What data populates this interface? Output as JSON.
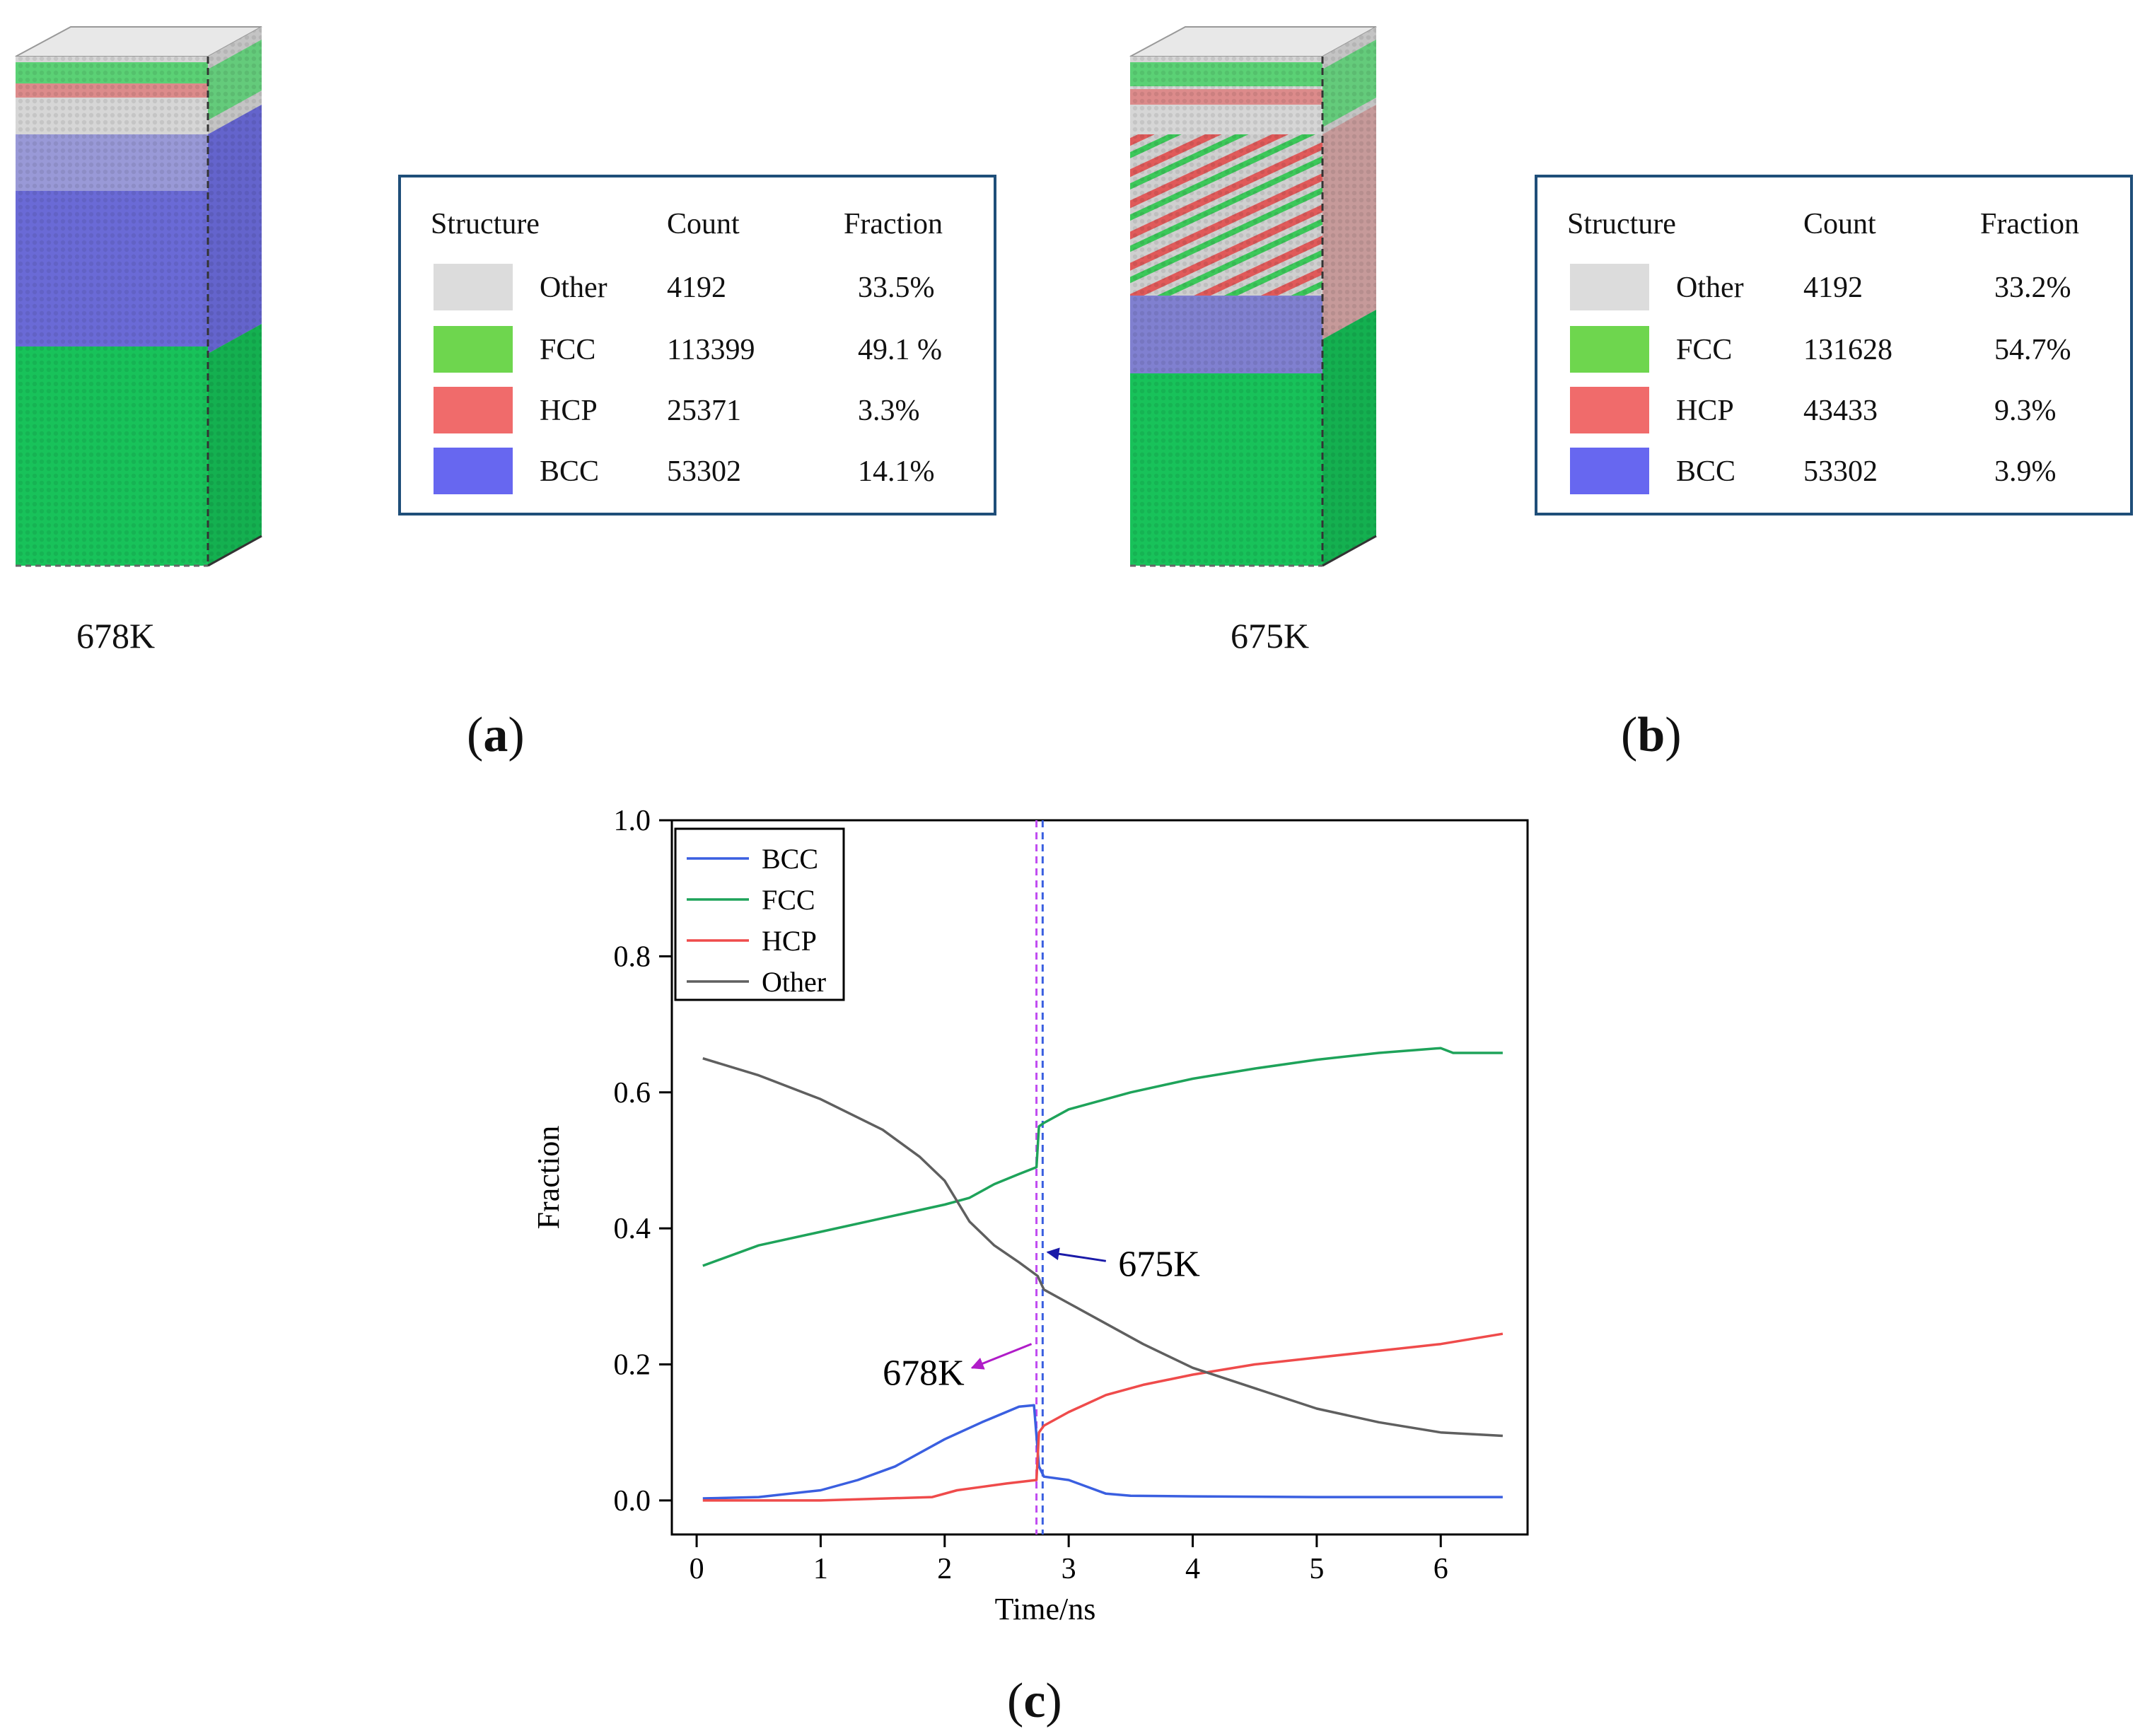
{
  "panels": {
    "a": {
      "label_open": "(",
      "label_letter": "a",
      "label_close": ")",
      "temperature": "678K",
      "table": {
        "headers": [
          "Structure",
          "Count",
          "Fraction"
        ],
        "rows": [
          {
            "structure": "Other",
            "count": "4192",
            "fraction": "33.5%",
            "color": "#dcdcdc"
          },
          {
            "structure": "FCC",
            "count": "113399",
            "fraction": "49.1 %",
            "color": "#6ed64e"
          },
          {
            "structure": "HCP",
            "count": "25371",
            "fraction": "3.3%",
            "color": "#f06b6b"
          },
          {
            "structure": "BCC",
            "count": "53302",
            "fraction": "14.1%",
            "color": "#6767f0"
          }
        ]
      }
    },
    "b": {
      "label_open": "(",
      "label_letter": "b",
      "label_close": ")",
      "temperature": "675K",
      "table": {
        "headers": [
          "Structure",
          "Count",
          "Fraction"
        ],
        "rows": [
          {
            "structure": "Other",
            "count": "4192",
            "fraction": "33.2%",
            "color": "#dcdcdc"
          },
          {
            "structure": "FCC",
            "count": "131628",
            "fraction": "54.7%",
            "color": "#6ed64e"
          },
          {
            "structure": "HCP",
            "count": "43433",
            "fraction": "9.3%",
            "color": "#f06b6b"
          },
          {
            "structure": "BCC",
            "count": "53302",
            "fraction": "3.9%",
            "color": "#6767f0"
          }
        ]
      }
    },
    "c": {
      "label_open": "(",
      "label_letter": "c",
      "label_close": ")"
    }
  },
  "chart_data": {
    "type": "line",
    "xlabel": "Time/ns",
    "ylabel": "Fraction",
    "xlim": [
      -0.2,
      6.7
    ],
    "ylim": [
      -0.05,
      1.0
    ],
    "xticks": [
      0,
      1,
      2,
      3,
      4,
      5,
      6
    ],
    "yticks": [
      0.0,
      0.2,
      0.4,
      0.6,
      0.8,
      1.0
    ],
    "ytick_labels": [
      "0.0",
      "0.2",
      "0.4",
      "0.6",
      "0.8",
      "1.0"
    ],
    "legend_position": "top-left",
    "series": [
      {
        "name": "BCC",
        "color": "#3a5fe0",
        "x": [
          0.05,
          0.5,
          1.0,
          1.3,
          1.6,
          2.0,
          2.3,
          2.6,
          2.72,
          2.76,
          2.8,
          3.0,
          3.3,
          3.5,
          4.0,
          5.0,
          6.0,
          6.5
        ],
        "y": [
          0.003,
          0.005,
          0.015,
          0.03,
          0.05,
          0.09,
          0.115,
          0.138,
          0.14,
          0.05,
          0.035,
          0.03,
          0.01,
          0.007,
          0.006,
          0.005,
          0.005,
          0.005
        ]
      },
      {
        "name": "FCC",
        "color": "#1ea35a",
        "x": [
          0.05,
          0.5,
          1.0,
          1.5,
          2.0,
          2.2,
          2.4,
          2.6,
          2.74,
          2.76,
          2.8,
          3.0,
          3.5,
          4.0,
          4.5,
          5.0,
          5.5,
          6.0,
          6.1,
          6.5
        ],
        "y": [
          0.345,
          0.375,
          0.395,
          0.415,
          0.435,
          0.445,
          0.465,
          0.48,
          0.49,
          0.55,
          0.555,
          0.575,
          0.6,
          0.62,
          0.635,
          0.648,
          0.658,
          0.665,
          0.658,
          0.658
        ]
      },
      {
        "name": "HCP",
        "color": "#ef4b4b",
        "x": [
          0.05,
          1.0,
          1.9,
          2.1,
          2.3,
          2.5,
          2.74,
          2.76,
          2.8,
          3.0,
          3.3,
          3.6,
          4.0,
          4.5,
          5.0,
          5.5,
          6.0,
          6.5
        ],
        "y": [
          0.0,
          0.0,
          0.005,
          0.015,
          0.02,
          0.025,
          0.03,
          0.1,
          0.11,
          0.13,
          0.155,
          0.17,
          0.185,
          0.2,
          0.21,
          0.22,
          0.23,
          0.245
        ]
      },
      {
        "name": "Other",
        "color": "#5f5f5f",
        "x": [
          0.05,
          0.5,
          1.0,
          1.5,
          1.8,
          2.0,
          2.2,
          2.4,
          2.6,
          2.75,
          2.8,
          3.0,
          3.3,
          3.6,
          4.0,
          4.5,
          5.0,
          5.5,
          6.0,
          6.5
        ],
        "y": [
          0.65,
          0.625,
          0.59,
          0.545,
          0.505,
          0.47,
          0.41,
          0.375,
          0.35,
          0.33,
          0.31,
          0.29,
          0.26,
          0.23,
          0.195,
          0.165,
          0.135,
          0.115,
          0.1,
          0.095
        ]
      }
    ],
    "vlines": [
      {
        "x": 2.74,
        "color": "#c04cf0"
      },
      {
        "x": 2.79,
        "color": "#3a5fe0"
      }
    ],
    "annotations": [
      {
        "text": "675K",
        "x": 3.4,
        "y": 0.33,
        "arrow_from": [
          3.3,
          0.352
        ],
        "arrow_to": [
          2.83,
          0.365
        ],
        "color": "#1a1aa8"
      },
      {
        "text": "678K",
        "x": 1.5,
        "y": 0.17,
        "arrow_from": [
          2.7,
          0.23
        ],
        "arrow_to": [
          2.22,
          0.195
        ],
        "color": "#b01cc8"
      }
    ]
  }
}
